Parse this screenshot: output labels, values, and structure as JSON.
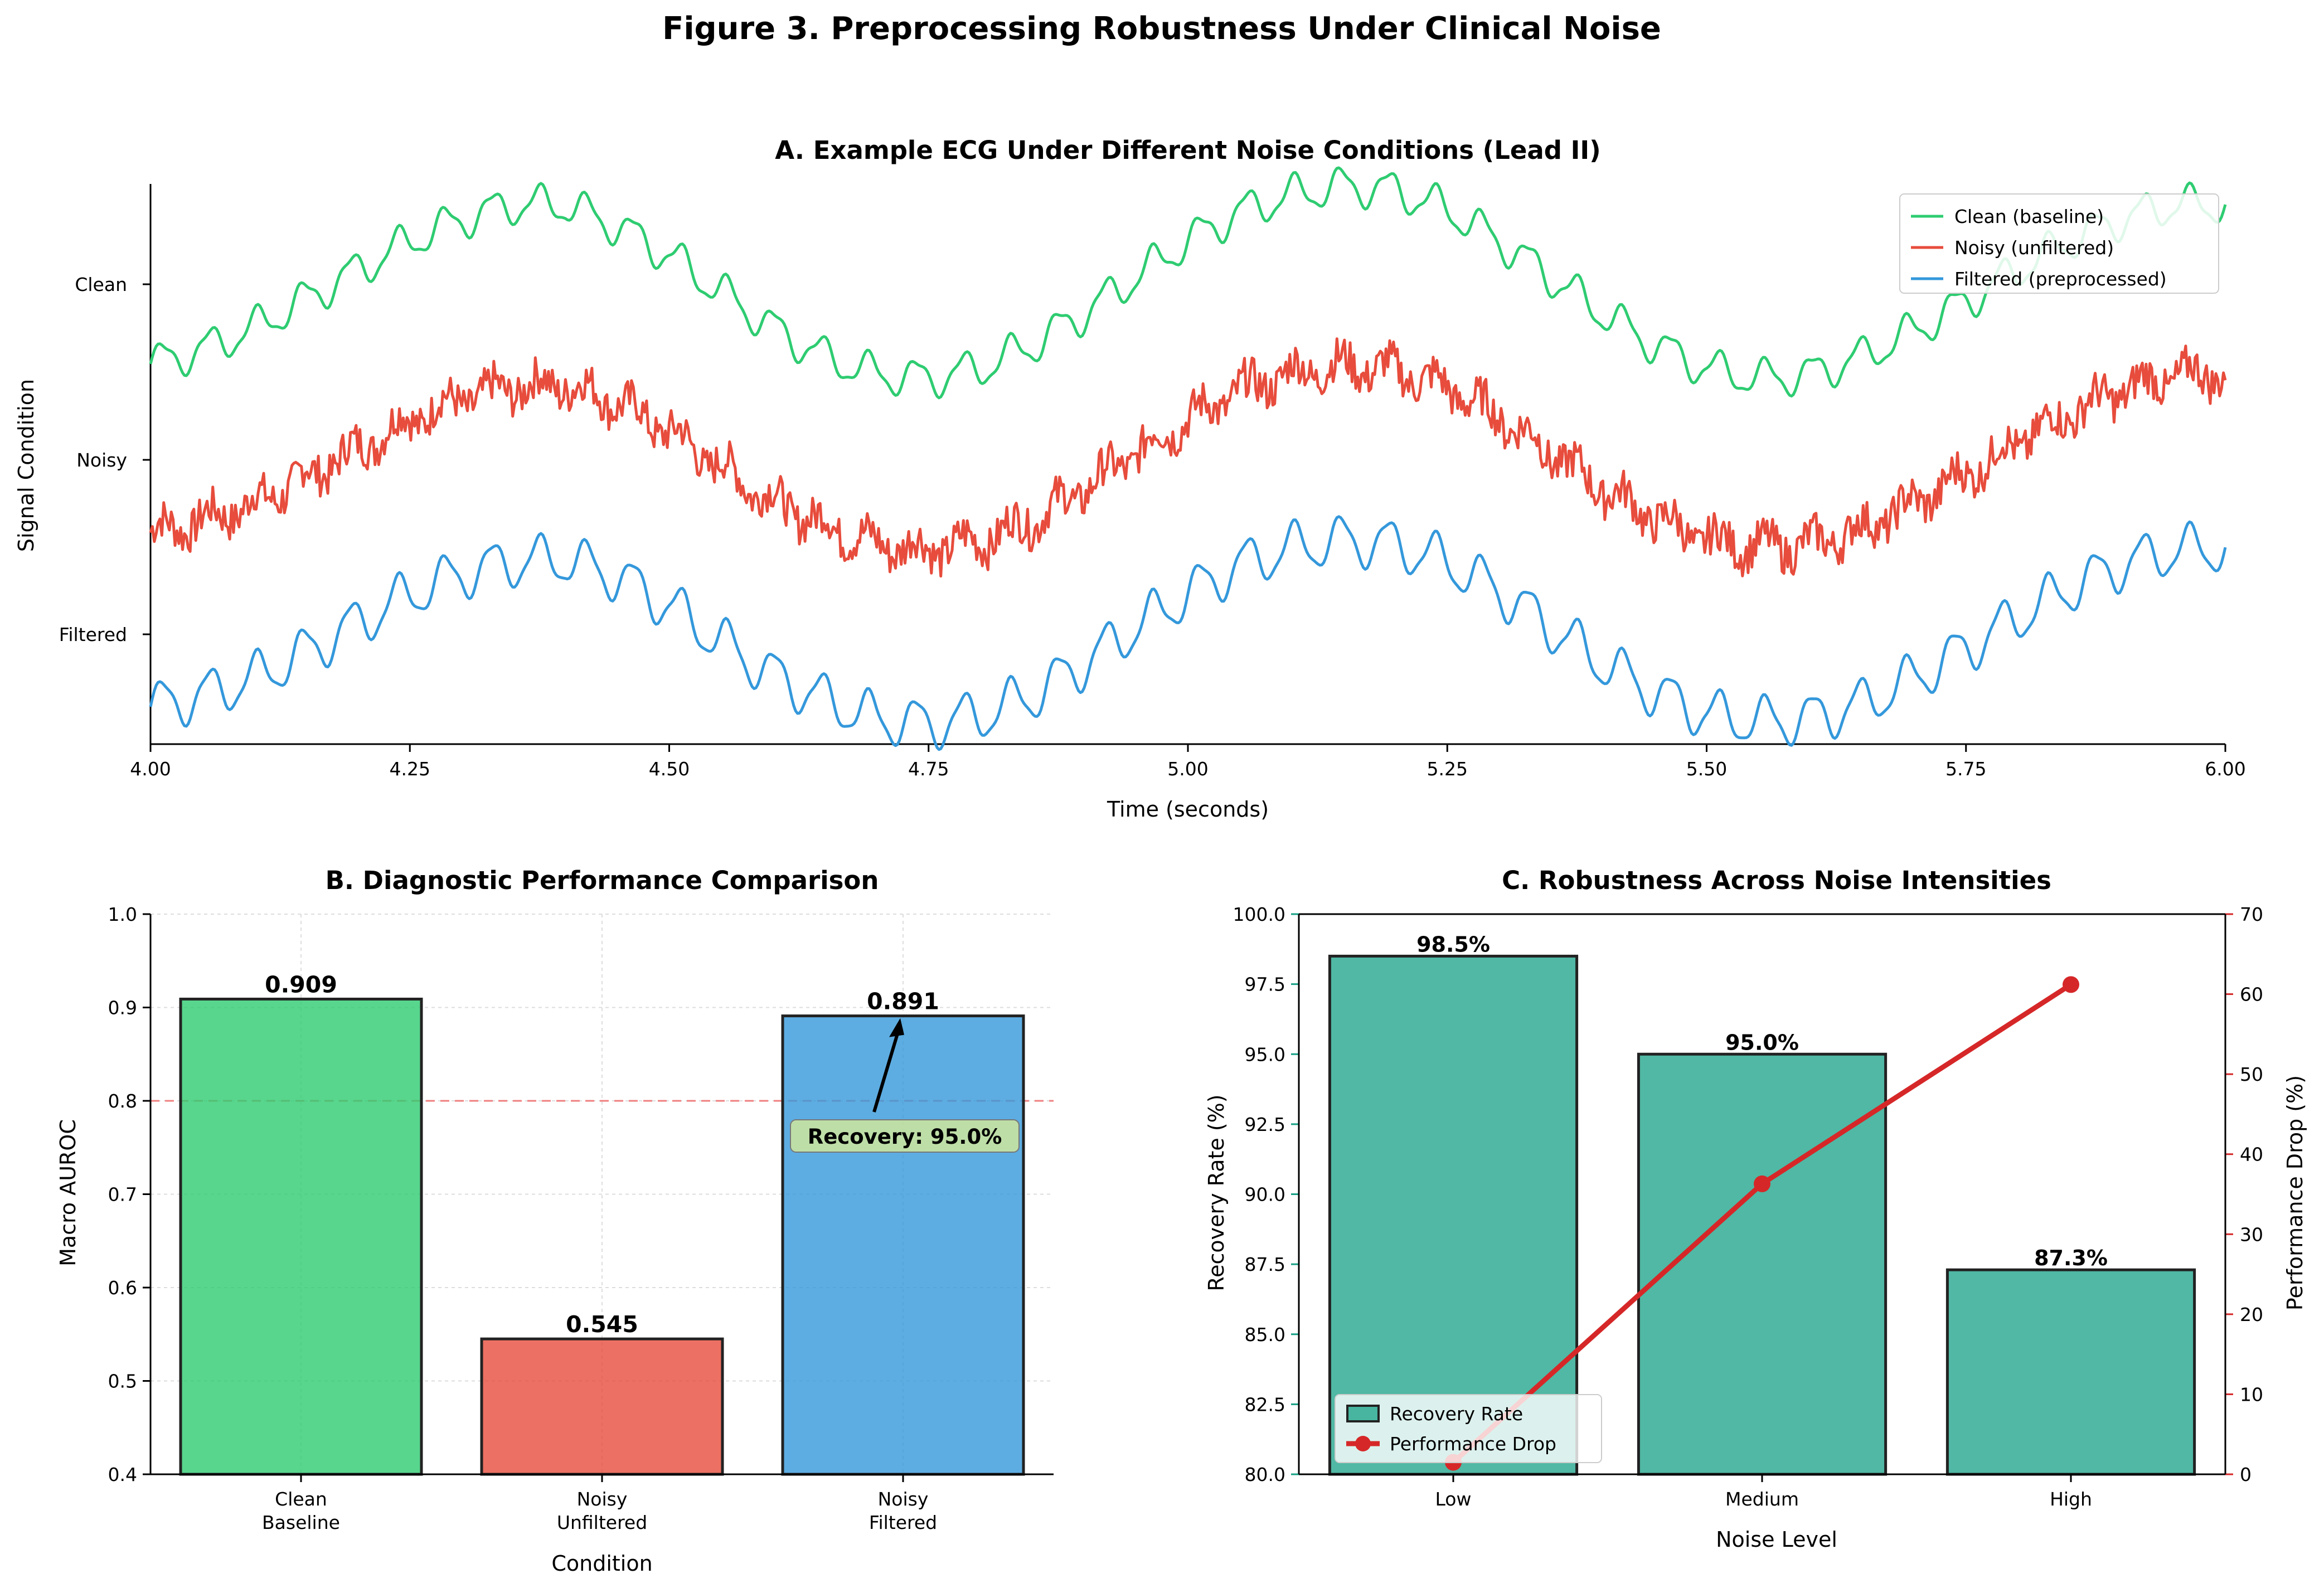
{
  "figure_title": "Figure 3. Preprocessing Robustness Under Clinical Noise",
  "colors": {
    "clean": "#2ecc71",
    "noisy": "#e74c3c",
    "filtered": "#3498db",
    "recovery": "#16a085",
    "drop": "#d62728",
    "threshold": "#f08080"
  },
  "chart_data": [
    {
      "panel": "A",
      "type": "line",
      "title": "A. Example ECG Under Different Noise Conditions (Lead II)",
      "xlabel": "Time (seconds)",
      "ylabel": "Signal Condition",
      "xlim": [
        4.0,
        6.0
      ],
      "xticks": [
        "4.00",
        "4.25",
        "4.50",
        "4.75",
        "5.00",
        "5.25",
        "5.50",
        "5.75",
        "6.00"
      ],
      "ytick_labels": [
        "Clean",
        "Noisy",
        "Filtered"
      ],
      "legend_position": "top-right",
      "series": [
        {
          "name": "Clean (baseline)",
          "color": "#2ecc71",
          "offset_level": "Clean",
          "x": [
            4.0,
            4.05,
            4.1,
            4.15,
            4.2,
            4.25,
            4.3,
            4.35,
            4.4,
            4.45,
            4.5,
            4.55,
            4.6,
            4.65,
            4.7,
            4.75,
            4.8,
            4.85,
            4.9,
            4.95,
            5.0,
            5.05,
            5.1,
            5.15,
            5.2,
            5.25,
            5.3,
            5.35,
            5.4,
            5.45,
            5.5,
            5.55,
            5.6,
            5.65,
            5.7,
            5.75,
            5.8,
            5.85,
            5.9,
            5.95,
            6.0
          ],
          "y": [
            -0.55,
            -0.45,
            -0.3,
            -0.1,
            0.1,
            0.3,
            0.45,
            0.55,
            0.55,
            0.4,
            0.2,
            -0.05,
            -0.3,
            -0.5,
            -0.62,
            -0.65,
            -0.58,
            -0.42,
            -0.2,
            0.05,
            0.3,
            0.5,
            0.62,
            0.68,
            0.65,
            0.52,
            0.3,
            0.05,
            -0.2,
            -0.42,
            -0.58,
            -0.65,
            -0.62,
            -0.5,
            -0.32,
            -0.12,
            0.1,
            0.3,
            0.45,
            0.55,
            0.55
          ],
          "ripple": 0.12
        },
        {
          "name": "Noisy (unfiltered)",
          "color": "#e74c3c",
          "offset_level": "Noisy",
          "x": [
            4.0,
            4.05,
            4.1,
            4.15,
            4.2,
            4.25,
            4.3,
            4.35,
            4.4,
            4.45,
            4.5,
            4.55,
            4.6,
            4.65,
            4.7,
            4.75,
            4.8,
            4.85,
            4.9,
            4.95,
            5.0,
            5.05,
            5.1,
            5.15,
            5.2,
            5.25,
            5.3,
            5.35,
            5.4,
            5.45,
            5.5,
            5.55,
            5.6,
            5.65,
            5.7,
            5.75,
            5.8,
            5.85,
            5.9,
            5.95,
            6.0
          ],
          "y": [
            -0.5,
            -0.42,
            -0.3,
            -0.12,
            0.08,
            0.28,
            0.42,
            0.5,
            0.52,
            0.4,
            0.2,
            -0.05,
            -0.28,
            -0.45,
            -0.58,
            -0.62,
            -0.56,
            -0.42,
            -0.2,
            0.05,
            0.28,
            0.48,
            0.6,
            0.65,
            0.62,
            0.5,
            0.3,
            0.05,
            -0.2,
            -0.4,
            -0.55,
            -0.6,
            -0.58,
            -0.48,
            -0.3,
            -0.1,
            0.12,
            0.32,
            0.48,
            0.58,
            0.6
          ],
          "noise": 0.28
        },
        {
          "name": "Filtered (preprocessed)",
          "color": "#3498db",
          "offset_level": "Filtered",
          "x": [
            4.0,
            4.05,
            4.1,
            4.15,
            4.2,
            4.25,
            4.3,
            4.35,
            4.4,
            4.45,
            4.5,
            4.55,
            4.6,
            4.65,
            4.7,
            4.75,
            4.8,
            4.85,
            4.9,
            4.95,
            5.0,
            5.05,
            5.1,
            5.15,
            5.2,
            5.25,
            5.3,
            5.35,
            5.4,
            5.45,
            5.5,
            5.55,
            5.6,
            5.65,
            5.7,
            5.75,
            5.8,
            5.85,
            5.9,
            5.95,
            6.0
          ],
          "y": [
            -0.5,
            -0.42,
            -0.3,
            -0.12,
            0.08,
            0.28,
            0.42,
            0.5,
            0.52,
            0.4,
            0.2,
            -0.05,
            -0.28,
            -0.45,
            -0.58,
            -0.62,
            -0.56,
            -0.42,
            -0.2,
            0.05,
            0.28,
            0.48,
            0.6,
            0.65,
            0.62,
            0.5,
            0.3,
            0.05,
            -0.2,
            -0.4,
            -0.55,
            -0.6,
            -0.58,
            -0.48,
            -0.3,
            -0.1,
            0.12,
            0.32,
            0.48,
            0.58,
            0.6
          ],
          "ripple": 0.16
        }
      ]
    },
    {
      "panel": "B",
      "type": "bar",
      "title": "B. Diagnostic Performance Comparison",
      "xlabel": "Condition",
      "ylabel": "Macro AUROC",
      "ylim": [
        0.4,
        1.0
      ],
      "yticks": [
        "0.4",
        "0.5",
        "0.6",
        "0.7",
        "0.8",
        "0.9",
        "1.0"
      ],
      "grid": true,
      "categories": [
        [
          "Clean",
          "Baseline"
        ],
        [
          "Noisy",
          "Unfiltered"
        ],
        [
          "Noisy",
          "Filtered"
        ]
      ],
      "values": [
        0.909,
        0.545,
        0.891
      ],
      "value_labels": [
        "0.909",
        "0.545",
        "0.891"
      ],
      "bar_colors": [
        "#2ecc71",
        "#e74c3c",
        "#3498db"
      ],
      "reference_line": 0.8,
      "annotation": {
        "text": "Recovery: 95.0%",
        "x_category": 2,
        "arrow_target": 0.891,
        "text_y": 0.76
      }
    },
    {
      "panel": "C",
      "type": "bar",
      "title": "C. Robustness Across Noise Intensities",
      "xlabel": "Noise Level",
      "ylabel_left": "Recovery Rate (%)",
      "ylabel_right": "Performance Drop (%)",
      "ylim_left": [
        80.0,
        100.0
      ],
      "ylim_right": [
        0,
        70
      ],
      "yticks_left": [
        "80.0",
        "82.5",
        "85.0",
        "87.5",
        "90.0",
        "92.5",
        "95.0",
        "97.5",
        "100.0"
      ],
      "yticks_right": [
        "0",
        "10",
        "20",
        "30",
        "40",
        "50",
        "60",
        "70"
      ],
      "categories": [
        "Low",
        "Medium",
        "High"
      ],
      "legend_position": "lower-left",
      "series": [
        {
          "name": "Recovery Rate",
          "type": "bar",
          "axis": "left",
          "values": [
            98.5,
            95.0,
            87.3
          ],
          "value_labels": [
            "98.5%",
            "95.0%",
            "87.3%"
          ]
        },
        {
          "name": "Performance Drop",
          "type": "line",
          "axis": "right",
          "values": [
            1.5,
            36.3,
            61.2
          ]
        }
      ]
    }
  ]
}
